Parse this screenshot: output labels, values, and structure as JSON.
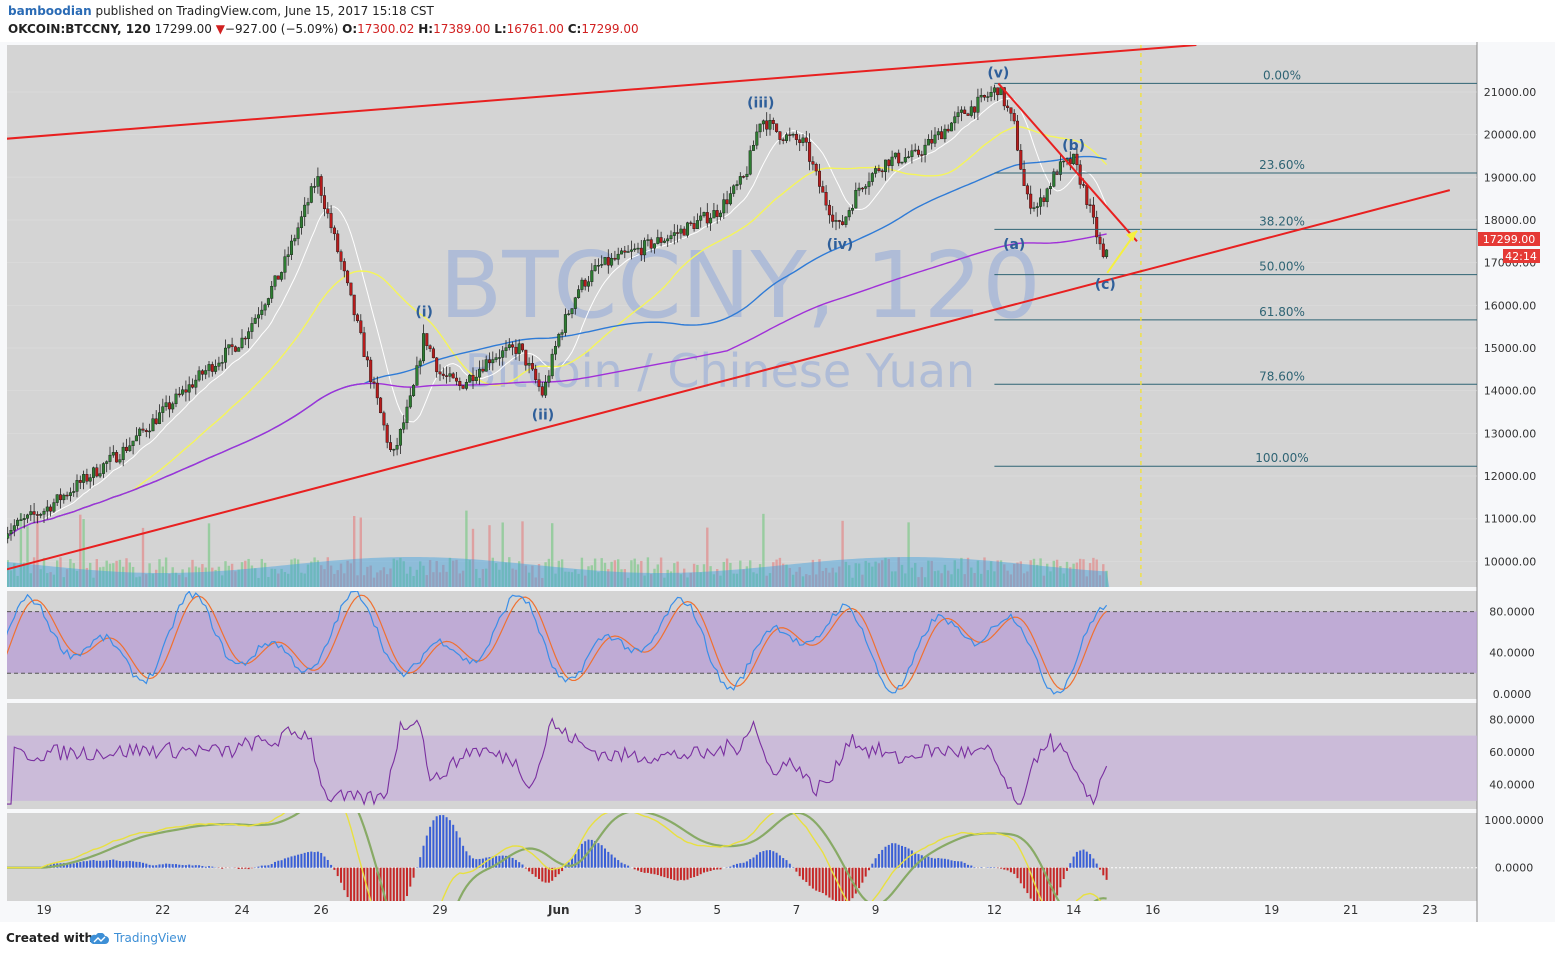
{
  "header": {
    "author": "bamboodian",
    "published_text": "published on TradingView.com, June 15, 2017 15:18 CST",
    "symbol": "OKCOIN:BTCCNY, 120",
    "last": "17299.00",
    "change": "−927.00 (−5.09%)",
    "o_label": "O:",
    "o_value": "17300.02",
    "h_label": "H:",
    "h_value": "17389.00",
    "l_label": "L:",
    "l_value": "16761.00",
    "c_label": "C:",
    "c_value": "17299.00"
  },
  "footer": {
    "created_with": "Created with",
    "brand": "TradingView"
  },
  "watermark": {
    "title": "BTCCNY, 120",
    "subtitle": "Bitcoin / Chinese Yuan"
  },
  "price_tag": {
    "value": "17299.00",
    "countdown": "42:14"
  },
  "colors": {
    "panel_bg": "#d4d4d4",
    "grid": "#e0e0e0",
    "axis_bg": "#f7f8fa",
    "up": "#2e7d32",
    "down": "#b71c1c",
    "trendline": "#e82020",
    "ma_fast": "#f5f55a",
    "ma_mid": "#2f7bd6",
    "ma_slow": "#a030d8",
    "fib_line": "#2f6474",
    "fib_text": "#2f6474",
    "wave_text": "#2f5f9a",
    "stoch_k": "#3a8ee8",
    "stoch_d": "#f07030",
    "rsi": "#7a2fa0",
    "macd_line": "#e8e040",
    "macd_signal": "#88aa66"
  },
  "chart_data": {
    "type": "candlestick",
    "symbol": "OKCOIN:BTCCNY",
    "interval": "120",
    "price_axis": [
      "21000.00",
      "20000.00",
      "19000.00",
      "18000.00",
      "17000.00",
      "16000.00",
      "15000.00",
      "14000.00",
      "13000.00",
      "12000.00",
      "11000.00",
      "10000.00"
    ],
    "price_axis_values": [
      21000,
      20000,
      19000,
      18000,
      17000,
      16000,
      15000,
      14000,
      13000,
      12000,
      11000,
      10000
    ],
    "price_range": [
      9400,
      22100
    ],
    "x_axis": [
      "19",
      "22",
      "24",
      "26",
      "29",
      "Jun",
      "3",
      "5",
      "7",
      "9",
      "12",
      "14",
      "16",
      "19",
      "21",
      "23"
    ],
    "fibonacci": [
      {
        "label": "0.00%",
        "price": 21200
      },
      {
        "label": "23.60%",
        "price": 19100
      },
      {
        "label": "38.20%",
        "price": 17780
      },
      {
        "label": "50.00%",
        "price": 16720
      },
      {
        "label": "61.80%",
        "price": 15660
      },
      {
        "label": "78.60%",
        "price": 14150
      },
      {
        "label": "100.00%",
        "price": 12230
      }
    ],
    "waves": [
      {
        "label": "(i)",
        "day": 28.6,
        "price": 15600,
        "pos": "above"
      },
      {
        "label": "(ii)",
        "day": 31.6,
        "price": 13700,
        "pos": "below"
      },
      {
        "label": "(iii)",
        "day": 37.1,
        "price": 20500,
        "pos": "above"
      },
      {
        "label": "(iv)",
        "day": 39.1,
        "price": 17700,
        "pos": "below"
      },
      {
        "label": "(v)",
        "day": 43.1,
        "price": 21200,
        "pos": "above"
      },
      {
        "label": "(a)",
        "day": 43.5,
        "price": 17700,
        "pos": "below"
      },
      {
        "label": "(b)",
        "day": 45.0,
        "price": 19500,
        "pos": "above"
      },
      {
        "label": "(c)",
        "day": 45.8,
        "price": 16760,
        "pos": "below"
      }
    ],
    "trendlines": [
      {
        "name": "upper channel",
        "points": [
          [
            18.0,
            19900
          ],
          [
            48.1,
            22100
          ]
        ]
      },
      {
        "name": "lower channel",
        "points": [
          [
            18.0,
            9800
          ],
          [
            54.5,
            18700
          ]
        ]
      },
      {
        "name": "wave c line",
        "points": [
          [
            43.1,
            21200
          ],
          [
            46.6,
            17500
          ]
        ]
      }
    ],
    "stochastic": {
      "levels": [
        80,
        20
      ],
      "ticks": [
        "80.0000",
        "40.0000",
        "0.0000"
      ],
      "range": [
        -5,
        100
      ]
    },
    "rsi": {
      "levels": [
        70,
        30
      ],
      "ticks": [
        "80.0000",
        "60.0000",
        "40.0000"
      ],
      "range": [
        25,
        90
      ]
    },
    "macd": {
      "ticks": [
        "1000.0000",
        "0.0000"
      ],
      "range": [
        -700,
        1150
      ]
    },
    "last_price": 17299
  }
}
